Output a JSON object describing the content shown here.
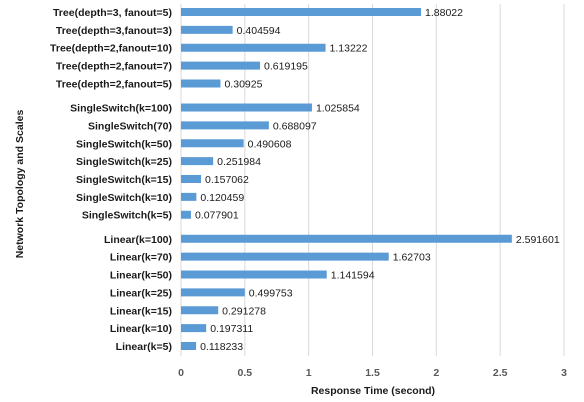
{
  "chart_data": {
    "type": "bar",
    "orientation": "horizontal",
    "title": "",
    "xlabel": "Response Time (second)",
    "ylabel": "Network Topology and Scales",
    "xlim": [
      0,
      3
    ],
    "xticks": [
      "0",
      "0.5",
      "1",
      "1.5",
      "2",
      "2.5",
      "3"
    ],
    "grid": "vertical",
    "legend": "none",
    "bar_color": "#5b9bd5",
    "categories": [
      "Tree(depth=3, fanout=5)",
      "Tree(depth=3,fanout=3)",
      "Tree(depth=2,fanout=10)",
      "Tree(depth=2,fanout=7)",
      "Tree(depth=2,fanout=5)",
      "SingleSwitch(k=100)",
      "SingleSwitch(70)",
      "SingleSwitch(k=50)",
      "SingleSwitch(k=25)",
      "SingleSwitch(k=15)",
      "SingleSwitch(k=10)",
      "SingleSwitch(k=5)",
      "Linear(k=100)",
      "Linear(k=70)",
      "Linear(k=50)",
      "Linear(k=25)",
      "Linear(k=15)",
      "Linear(k=10)",
      "Linear(k=5)"
    ],
    "values": [
      1.88022,
      0.404594,
      1.13222,
      0.619195,
      0.30925,
      1.025854,
      0.688097,
      0.490608,
      0.251984,
      0.157062,
      0.120459,
      0.077901,
      2.591601,
      1.62703,
      1.141594,
      0.499753,
      0.291278,
      0.197311,
      0.118233
    ],
    "value_labels": [
      "1.88022",
      "0.404594",
      "1.13222",
      "0.619195",
      "0.30925",
      "1.025854",
      "0.688097",
      "0.490608",
      "0.251984",
      "0.157062",
      "0.120459",
      "0.077901",
      "2.591601",
      "1.62703",
      "1.141594",
      "0.499753",
      "0.291278",
      "0.197311",
      "0.118233"
    ]
  }
}
